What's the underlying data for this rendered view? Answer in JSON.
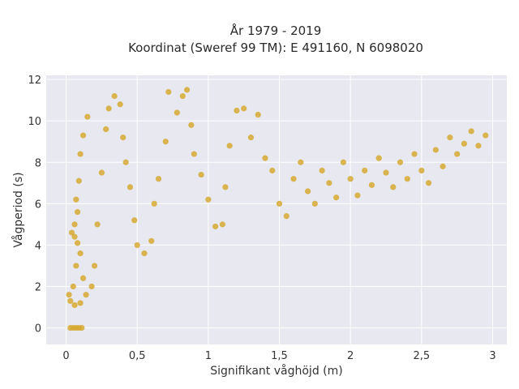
{
  "chart_data": {
    "type": "scatter",
    "title": "År 1979 - 2019",
    "subtitle": "Koordinat (Sweref 99 TM): E 491160, N 6098020",
    "xlabel": "Signifikant våghöjd (m)",
    "ylabel": "Vågperiod (s)",
    "xlim": [
      -0.14,
      3.1
    ],
    "ylim": [
      -0.8,
      12.2
    ],
    "x_ticks": [
      0,
      0.5,
      1,
      1.5,
      2,
      2.5,
      3
    ],
    "x_tick_labels": [
      "0",
      "0,5",
      "1",
      "1,5",
      "2",
      "2,5",
      "3"
    ],
    "y_ticks": [
      0,
      2,
      4,
      6,
      8,
      10,
      12
    ],
    "y_tick_labels": [
      "0",
      "2",
      "4",
      "6",
      "8",
      "10",
      "12"
    ],
    "grid": true,
    "marker_color": "#D4A525",
    "background_color": "#E8E8F0",
    "series": [
      {
        "points": [
          [
            0.03,
            1.3
          ],
          [
            0.05,
            2.0
          ],
          [
            0.07,
            3.0
          ],
          [
            0.08,
            4.1
          ],
          [
            0.06,
            5.0
          ],
          [
            0.07,
            6.2
          ],
          [
            0.09,
            7.1
          ],
          [
            0.1,
            8.4
          ],
          [
            0.12,
            9.3
          ],
          [
            0.15,
            10.2
          ],
          [
            0.04,
            4.6
          ],
          [
            0.06,
            4.4
          ],
          [
            0.08,
            5.6
          ],
          [
            0.1,
            3.6
          ],
          [
            0.12,
            2.4
          ],
          [
            0.14,
            1.6
          ],
          [
            0.18,
            2.0
          ],
          [
            0.2,
            3.0
          ],
          [
            0.22,
            5.0
          ],
          [
            0.25,
            7.5
          ],
          [
            0.28,
            9.6
          ],
          [
            0.3,
            10.6
          ],
          [
            0.34,
            11.2
          ],
          [
            0.38,
            10.8
          ],
          [
            0.4,
            9.2
          ],
          [
            0.42,
            8.0
          ],
          [
            0.45,
            6.8
          ],
          [
            0.48,
            5.2
          ],
          [
            0.5,
            4.0
          ],
          [
            0.55,
            3.6
          ],
          [
            0.6,
            4.2
          ],
          [
            0.62,
            6.0
          ],
          [
            0.65,
            7.2
          ],
          [
            0.7,
            9.0
          ],
          [
            0.72,
            11.4
          ],
          [
            0.78,
            10.4
          ],
          [
            0.82,
            11.2
          ],
          [
            0.85,
            11.5
          ],
          [
            0.88,
            9.8
          ],
          [
            0.9,
            8.4
          ],
          [
            0.95,
            7.4
          ],
          [
            1.0,
            6.2
          ],
          [
            1.05,
            4.9
          ],
          [
            1.1,
            5.0
          ],
          [
            1.12,
            6.8
          ],
          [
            1.15,
            8.8
          ],
          [
            1.2,
            10.5
          ],
          [
            1.25,
            10.6
          ],
          [
            1.3,
            9.2
          ],
          [
            1.35,
            10.3
          ],
          [
            1.4,
            8.2
          ],
          [
            1.45,
            7.6
          ],
          [
            1.5,
            6.0
          ],
          [
            1.55,
            5.4
          ],
          [
            1.6,
            7.2
          ],
          [
            1.65,
            8.0
          ],
          [
            1.7,
            6.6
          ],
          [
            1.75,
            6.0
          ],
          [
            1.8,
            7.6
          ],
          [
            1.85,
            7.0
          ],
          [
            1.9,
            6.3
          ],
          [
            1.95,
            8.0
          ],
          [
            2.0,
            7.2
          ],
          [
            2.05,
            6.4
          ],
          [
            2.1,
            7.6
          ],
          [
            2.15,
            6.9
          ],
          [
            2.2,
            8.2
          ],
          [
            2.25,
            7.5
          ],
          [
            2.3,
            6.8
          ],
          [
            2.35,
            8.0
          ],
          [
            2.4,
            7.2
          ],
          [
            2.45,
            8.4
          ],
          [
            2.5,
            7.6
          ],
          [
            2.55,
            7.0
          ],
          [
            2.6,
            8.6
          ],
          [
            2.65,
            7.8
          ],
          [
            2.7,
            9.2
          ],
          [
            2.75,
            8.4
          ],
          [
            2.8,
            8.9
          ],
          [
            2.85,
            9.5
          ],
          [
            2.9,
            8.8
          ],
          [
            2.95,
            9.3
          ],
          [
            0.03,
            0.0
          ],
          [
            0.05,
            0.0
          ],
          [
            0.07,
            0.0
          ],
          [
            0.09,
            0.0
          ],
          [
            0.11,
            0.0
          ],
          [
            0.02,
            1.6
          ],
          [
            0.06,
            1.1
          ],
          [
            0.1,
            1.2
          ]
        ]
      }
    ]
  }
}
